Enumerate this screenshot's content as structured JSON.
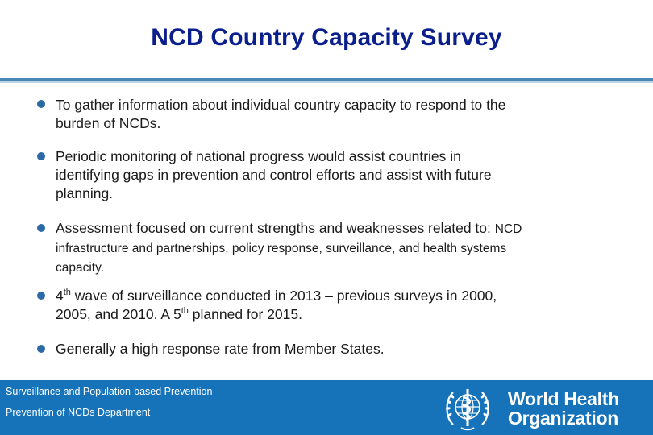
{
  "slide": {
    "title": "NCD Country Capacity Survey"
  },
  "bullets": [
    {
      "line1": "To gather information about individual country capacity to respond to the",
      "line2": "burden of NCDs."
    },
    {
      "line1": "Periodic monitoring of national progress would assist countries in",
      "line2": "identifying gaps in prevention and control efforts and assist with future",
      "line3": "planning."
    },
    {
      "line1": "Assessment focused on current strengths and weaknesses related to:",
      "line1_small": "NCD",
      "line2": "infrastructure and partnerships, policy response, surveillance, and health systems",
      "line3": "capacity."
    },
    {
      "p1": "4",
      "sup1": "th",
      "p2": " wave of surveillance conducted in 2013 – previous surveys in 2000,",
      "line2a": "2005, and 2010.  A 5",
      "sup2": "th",
      "line2b": " planned for 2015."
    },
    {
      "line1": "Generally a high response rate from Member States."
    }
  ],
  "footer": {
    "line1": "Surveillance and Population-based Prevention",
    "line2": "Prevention of NCDs Department",
    "org_line1": "World Health",
    "org_line2": "Organization",
    "logo_icon": "who-emblem-icon"
  },
  "colors": {
    "title": "#0a1e8c",
    "bullet": "#2c6aa7",
    "footer_bg": "#1673b9"
  }
}
